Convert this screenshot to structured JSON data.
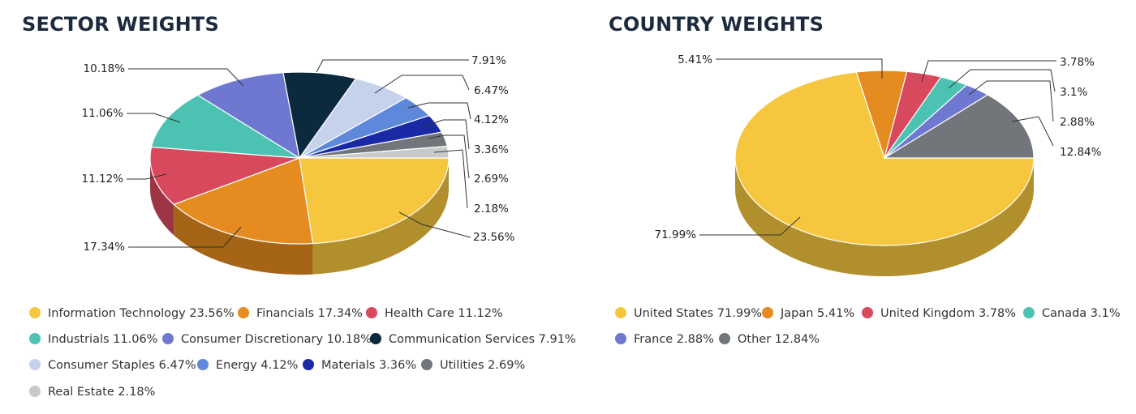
{
  "chart_data": [
    {
      "type": "pie",
      "title": "SECTOR WEIGHTS",
      "legend_placement": "bottom",
      "slices": [
        {
          "name": "Information Technology",
          "value": 23.56,
          "label": "23.56%",
          "color": "#F6C63F"
        },
        {
          "name": "Financials",
          "value": 17.34,
          "label": "17.34%",
          "color": "#E58B1F"
        },
        {
          "name": "Health Care",
          "value": 11.12,
          "label": "11.12%",
          "color": "#D9495E"
        },
        {
          "name": "Industrials",
          "value": 11.06,
          "label": "11.06%",
          "color": "#4CC3B2"
        },
        {
          "name": "Consumer Discretionary",
          "value": 10.18,
          "label": "10.18%",
          "color": "#6F78D0"
        },
        {
          "name": "Communication Services",
          "value": 7.91,
          "label": "7.91%",
          "color": "#0C2A3E"
        },
        {
          "name": "Consumer Staples",
          "value": 6.47,
          "label": "6.47%",
          "color": "#C6D1EC"
        },
        {
          "name": "Energy",
          "value": 4.12,
          "label": "4.12%",
          "color": "#5E88DA"
        },
        {
          "name": "Materials",
          "value": 3.36,
          "label": "3.36%",
          "color": "#1A2AA6"
        },
        {
          "name": "Utilities",
          "value": 2.69,
          "label": "2.69%",
          "color": "#727579"
        },
        {
          "name": "Real Estate",
          "value": 2.18,
          "label": "2.18%",
          "color": "#C8C9C9"
        }
      ]
    },
    {
      "type": "pie",
      "title": "COUNTRY WEIGHTS",
      "legend_placement": "bottom",
      "slices": [
        {
          "name": "United States",
          "value": 71.99,
          "label": "71.99%",
          "color": "#F6C63F"
        },
        {
          "name": "Japan",
          "value": 5.41,
          "label": "5.41%",
          "color": "#E58B1F"
        },
        {
          "name": "United Kingdom",
          "value": 3.78,
          "label": "3.78%",
          "color": "#D9495E"
        },
        {
          "name": "Canada",
          "value": 3.1,
          "label": "3.1%",
          "color": "#4CC3B2"
        },
        {
          "name": "France",
          "value": 2.88,
          "label": "2.88%",
          "color": "#6F78D0"
        },
        {
          "name": "Other",
          "value": 12.84,
          "label": "12.84%",
          "color": "#727579"
        }
      ]
    }
  ],
  "legend": {
    "sector": [
      "Information Technology 23.56%",
      "Financials 17.34%",
      "Health Care 11.12%",
      "Industrials 11.06%",
      "Consumer Discretionary 10.18%",
      "Communication Services 7.91%",
      "Consumer Staples 6.47%",
      "Energy 4.12%",
      "Materials 3.36%",
      "Utilities 2.69%",
      "Real Estate 2.18%"
    ],
    "country": [
      "United States 71.99%",
      "Japan 5.41%",
      "United Kingdom 3.78%",
      "Canada 3.1%",
      "France 2.88%",
      "Other 12.84%"
    ]
  }
}
